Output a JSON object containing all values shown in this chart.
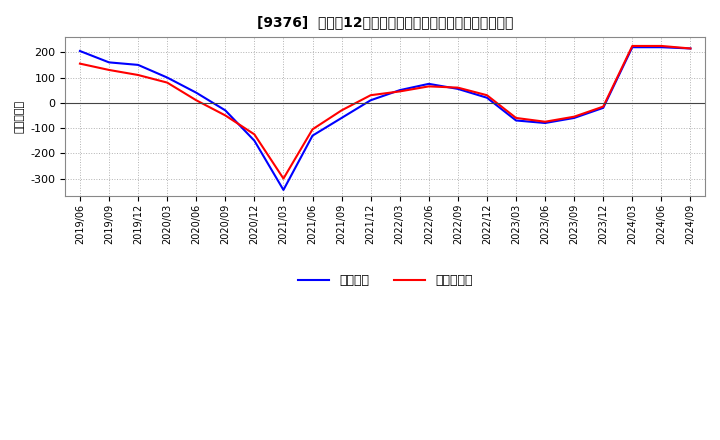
{
  "title": "[9376]  利益だ12か月移動合計の対前年同期増減額の推移",
  "ylabel": "（百万円）",
  "legend_labels": [
    "経常利益",
    "当期純利益"
  ],
  "line_colors": [
    "#0000FF",
    "#FF0000"
  ],
  "background_color": "#FFFFFF",
  "plot_bg_color": "#FFFFFF",
  "grid_color": "#AAAAAA",
  "ylim": [
    -370,
    260
  ],
  "yticks": [
    -300,
    -200,
    -100,
    0,
    100,
    200
  ],
  "values_operating": [
    205,
    160,
    150,
    100,
    40,
    -30,
    -150,
    -345,
    -130,
    -60,
    10,
    50,
    75,
    55,
    20,
    -70,
    -80,
    -60,
    -20,
    220,
    220,
    215
  ],
  "values_net": [
    155,
    130,
    110,
    80,
    10,
    -50,
    -125,
    -300,
    -105,
    -30,
    30,
    45,
    65,
    60,
    30,
    -60,
    -75,
    -55,
    -15,
    225,
    225,
    215
  ],
  "xtick_labels": [
    "2019/06",
    "2019/09",
    "2019/12",
    "2020/03",
    "2020/06",
    "2020/09",
    "2020/12",
    "2021/03",
    "2021/06",
    "2021/09",
    "2021/12",
    "2022/03",
    "2022/06",
    "2022/09",
    "2022/12",
    "2023/03",
    "2023/06",
    "2023/09",
    "2023/12",
    "2024/03",
    "2024/06",
    "2024/09"
  ]
}
